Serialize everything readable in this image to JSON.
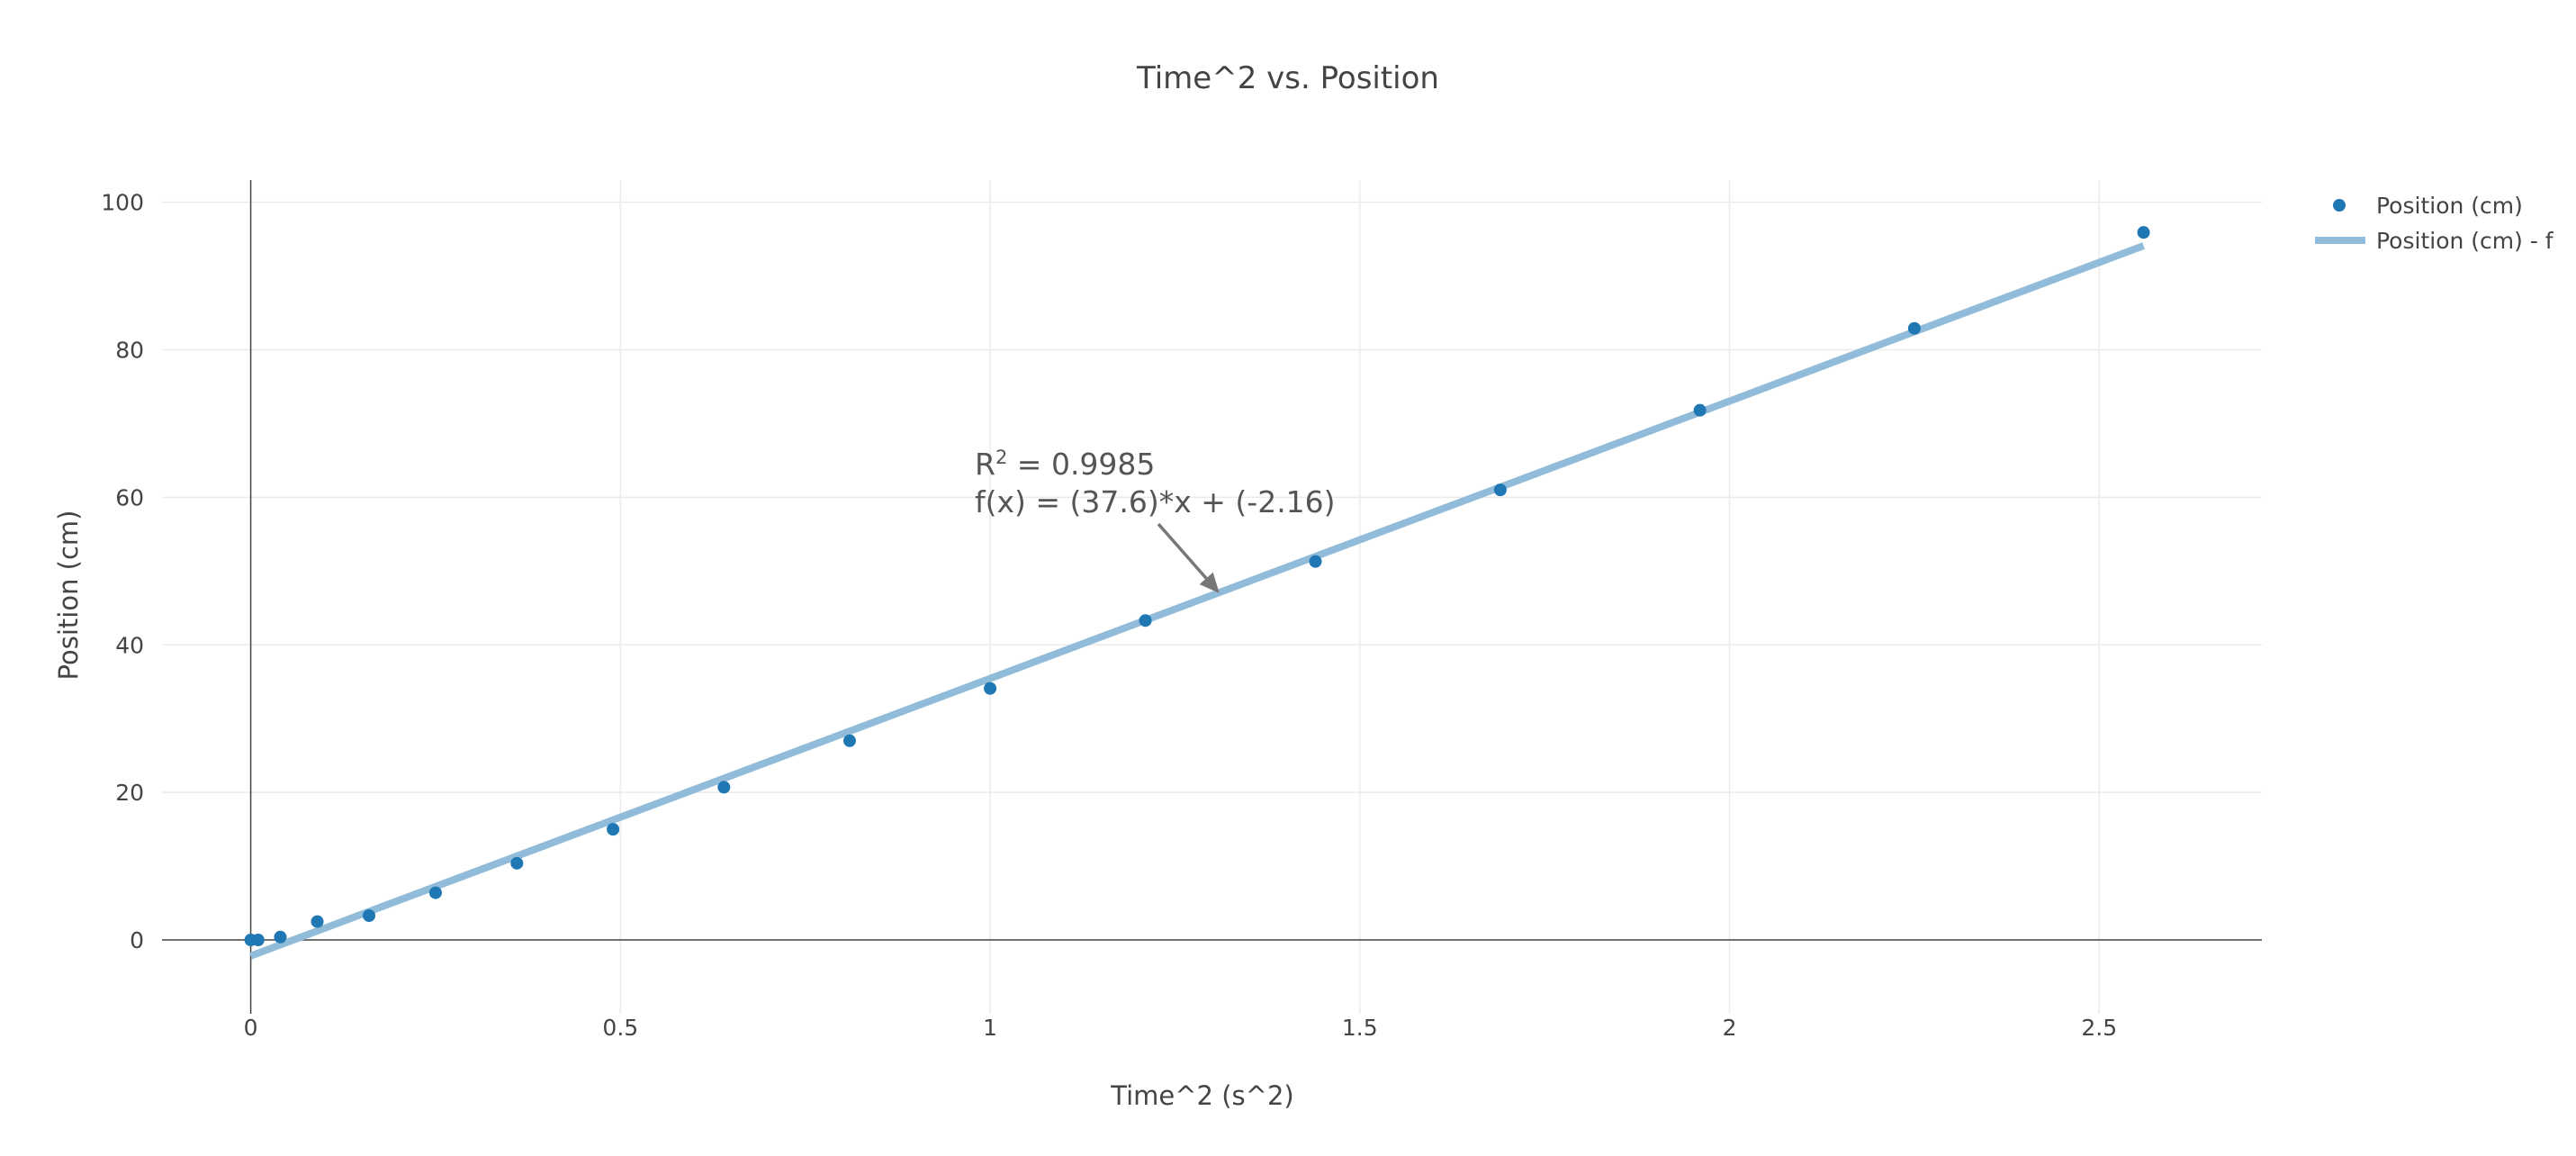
{
  "chart_data": {
    "type": "scatter",
    "title": "Time^2 vs. Position",
    "xlabel": "Time^2 (s^2)",
    "ylabel": "Position (cm)",
    "xlim": [
      -0.12,
      2.72
    ],
    "ylim": [
      -10,
      103
    ],
    "x_ticks": [
      0,
      0.5,
      1,
      1.5,
      2,
      2.5
    ],
    "x_tick_labels": [
      "0",
      "0.5",
      "1",
      "1.5",
      "2",
      "2.5"
    ],
    "y_ticks": [
      0,
      20,
      40,
      60,
      80,
      100
    ],
    "y_tick_labels": [
      "0",
      "20",
      "40",
      "60",
      "80",
      "100"
    ],
    "grid": true,
    "legend_position": "top-right",
    "series": [
      {
        "name": "Position (cm)",
        "mode": "markers",
        "color": "#1f77b4",
        "x": [
          0,
          0.01,
          0.04,
          0.09,
          0.16,
          0.25,
          0.36,
          0.49,
          0.64,
          0.81,
          1.0,
          1.21,
          1.44,
          1.69,
          1.96,
          2.25,
          2.56
        ],
        "y": [
          0,
          0,
          0.4,
          2.5,
          3.3,
          6.4,
          10.4,
          15.0,
          20.7,
          27.0,
          34.1,
          43.3,
          51.3,
          61.0,
          71.8,
          82.9,
          95.9
        ]
      },
      {
        "name": "Position (cm) - f",
        "mode": "lines",
        "color": "#91bcd9",
        "slope": 37.6,
        "intercept": -2.16,
        "x_range": [
          0,
          2.56
        ]
      }
    ],
    "annotation": {
      "r2_prefix": "R",
      "r2_sup": "2",
      "r2_value": " = 0.9985",
      "equation": "f(x) = (37.6)*x + (-2.16)",
      "arrow_x": 1.31,
      "arrow_y": 47
    }
  }
}
